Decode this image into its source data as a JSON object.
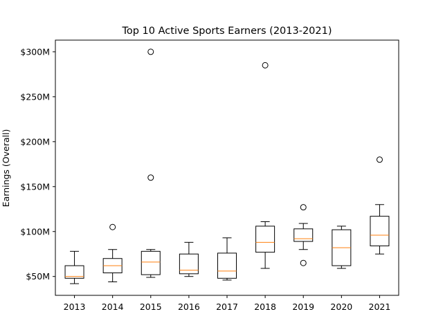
{
  "chart_data": {
    "type": "box",
    "title": "Top 10 Active Sports Earners (2013-2021)",
    "xlabel": "",
    "ylabel": "Earnings (Overall)",
    "ylim": [
      29,
      313
    ],
    "grid": false,
    "colors": {
      "box": "#000000",
      "median": "#ff7f0e",
      "background": "#ffffff"
    },
    "yticks": [
      {
        "value": 50,
        "label": "$50M"
      },
      {
        "value": 100,
        "label": "$100M"
      },
      {
        "value": 150,
        "label": "$150M"
      },
      {
        "value": 200,
        "label": "$200M"
      },
      {
        "value": 250,
        "label": "$250M"
      },
      {
        "value": 300,
        "label": "$300M"
      }
    ],
    "categories": [
      "2013",
      "2014",
      "2015",
      "2016",
      "2017",
      "2018",
      "2019",
      "2020",
      "2021"
    ],
    "boxes": [
      {
        "category": "2013",
        "whisker_low": 42,
        "q1": 48,
        "median": 50,
        "q3": 62,
        "whisker_high": 78,
        "outliers": []
      },
      {
        "category": "2014",
        "whisker_low": 44,
        "q1": 54,
        "median": 62,
        "q3": 70,
        "whisker_high": 80,
        "outliers": [
          105
        ]
      },
      {
        "category": "2015",
        "whisker_low": 49,
        "q1": 52,
        "median": 66,
        "q3": 78,
        "whisker_high": 80,
        "outliers": [
          160,
          300
        ]
      },
      {
        "category": "2016",
        "whisker_low": 50,
        "q1": 53,
        "median": 57,
        "q3": 75,
        "whisker_high": 88,
        "outliers": []
      },
      {
        "category": "2017",
        "whisker_low": 46,
        "q1": 48,
        "median": 56,
        "q3": 76,
        "whisker_high": 93,
        "outliers": []
      },
      {
        "category": "2018",
        "whisker_low": 59,
        "q1": 77,
        "median": 88,
        "q3": 106,
        "whisker_high": 111,
        "outliers": [
          285
        ]
      },
      {
        "category": "2019",
        "whisker_low": 80,
        "q1": 89,
        "median": 92,
        "q3": 103,
        "whisker_high": 109,
        "outliers": [
          65,
          127
        ]
      },
      {
        "category": "2020",
        "whisker_low": 59,
        "q1": 62,
        "median": 82,
        "q3": 102,
        "whisker_high": 106,
        "outliers": []
      },
      {
        "category": "2021",
        "whisker_low": 75,
        "q1": 84,
        "median": 96,
        "q3": 117,
        "whisker_high": 130,
        "outliers": [
          180
        ]
      }
    ]
  }
}
